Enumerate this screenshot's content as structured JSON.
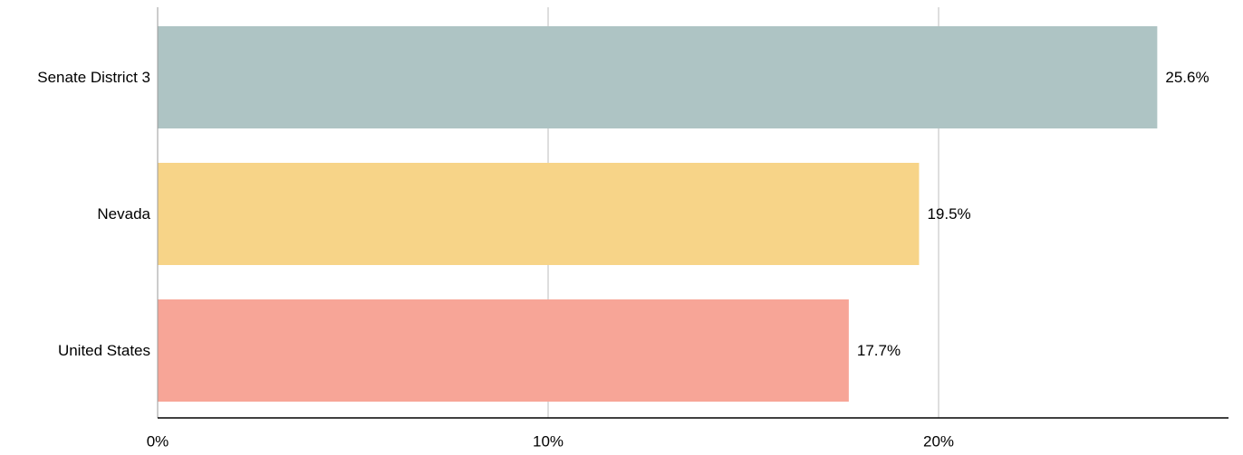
{
  "chart_data": {
    "type": "bar",
    "orientation": "horizontal",
    "categories": [
      "Senate District 3",
      "Nevada",
      "United States"
    ],
    "values": [
      25.6,
      19.5,
      17.7
    ],
    "value_labels": [
      "25.6%",
      "19.5%",
      "17.7%"
    ],
    "colors": [
      "#aec4c4",
      "#f7d488",
      "#f7a597"
    ],
    "title": "",
    "xlabel": "",
    "ylabel": "",
    "xlim": [
      0,
      27.5
    ],
    "x_ticks": [
      0,
      10,
      20
    ],
    "x_tick_labels": [
      "0%",
      "10%",
      "20%"
    ],
    "grid": "vertical gridlines on",
    "legend": "none"
  }
}
